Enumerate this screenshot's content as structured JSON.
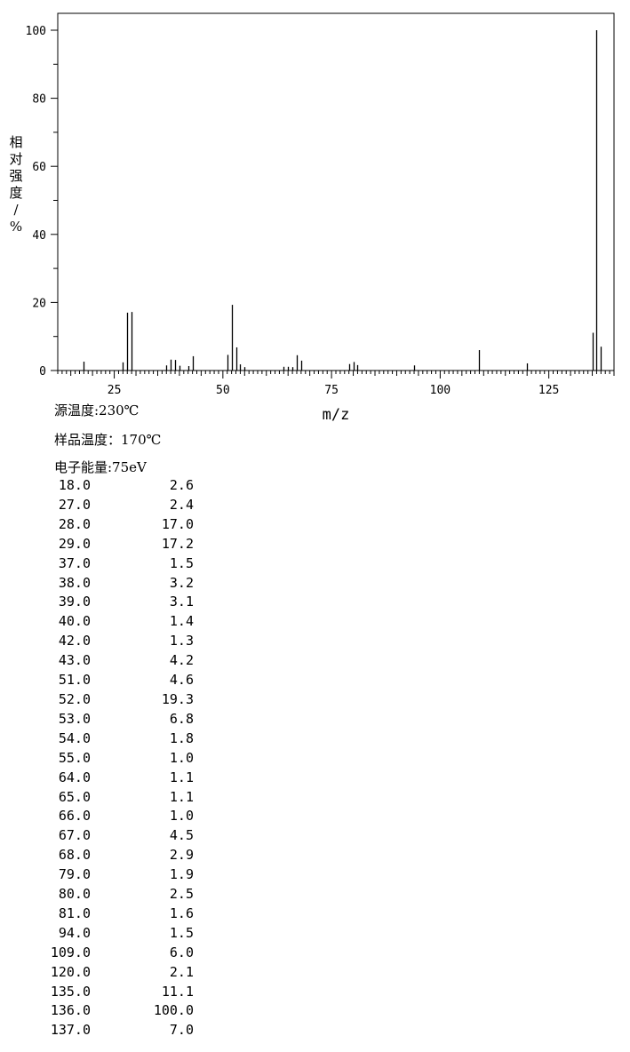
{
  "chart_data": {
    "type": "bar",
    "xlabel": "m/z",
    "ylabel": "相对强度/%",
    "xlim": [
      12,
      140
    ],
    "ylim": [
      0,
      100
    ],
    "x_ticks": [
      25,
      50,
      75,
      100,
      125
    ],
    "y_ticks": [
      0,
      20,
      40,
      60,
      80,
      100
    ],
    "grid": false,
    "peaks": [
      {
        "mz": 18.0,
        "intensity": 2.6
      },
      {
        "mz": 27.0,
        "intensity": 2.4
      },
      {
        "mz": 28.0,
        "intensity": 17.0
      },
      {
        "mz": 29.0,
        "intensity": 17.2
      },
      {
        "mz": 37.0,
        "intensity": 1.5
      },
      {
        "mz": 38.0,
        "intensity": 3.2
      },
      {
        "mz": 39.0,
        "intensity": 3.1
      },
      {
        "mz": 40.0,
        "intensity": 1.4
      },
      {
        "mz": 42.0,
        "intensity": 1.3
      },
      {
        "mz": 43.0,
        "intensity": 4.2
      },
      {
        "mz": 51.0,
        "intensity": 4.6
      },
      {
        "mz": 52.0,
        "intensity": 19.3
      },
      {
        "mz": 53.0,
        "intensity": 6.8
      },
      {
        "mz": 54.0,
        "intensity": 1.8
      },
      {
        "mz": 55.0,
        "intensity": 1.0
      },
      {
        "mz": 64.0,
        "intensity": 1.1
      },
      {
        "mz": 65.0,
        "intensity": 1.1
      },
      {
        "mz": 66.0,
        "intensity": 1.0
      },
      {
        "mz": 67.0,
        "intensity": 4.5
      },
      {
        "mz": 68.0,
        "intensity": 2.9
      },
      {
        "mz": 79.0,
        "intensity": 1.9
      },
      {
        "mz": 80.0,
        "intensity": 2.5
      },
      {
        "mz": 81.0,
        "intensity": 1.6
      },
      {
        "mz": 94.0,
        "intensity": 1.5
      },
      {
        "mz": 109.0,
        "intensity": 6.0
      },
      {
        "mz": 120.0,
        "intensity": 2.1
      },
      {
        "mz": 135.0,
        "intensity": 11.1
      },
      {
        "mz": 136.0,
        "intensity": 100.0
      },
      {
        "mz": 137.0,
        "intensity": 7.0
      }
    ]
  },
  "conditions": {
    "source_temp": "源温度:230℃",
    "sample_temp": "样品温度：170℃",
    "electron_energy": "电子能量:75eV"
  },
  "peak_table": [
    {
      "mz": "18.0",
      "ab": "2.6"
    },
    {
      "mz": "27.0",
      "ab": "2.4"
    },
    {
      "mz": "28.0",
      "ab": "17.0"
    },
    {
      "mz": "29.0",
      "ab": "17.2"
    },
    {
      "mz": "37.0",
      "ab": "1.5"
    },
    {
      "mz": "38.0",
      "ab": "3.2"
    },
    {
      "mz": "39.0",
      "ab": "3.1"
    },
    {
      "mz": "40.0",
      "ab": "1.4"
    },
    {
      "mz": "42.0",
      "ab": "1.3"
    },
    {
      "mz": "43.0",
      "ab": "4.2"
    },
    {
      "mz": "51.0",
      "ab": "4.6"
    },
    {
      "mz": "52.0",
      "ab": "19.3"
    },
    {
      "mz": "53.0",
      "ab": "6.8"
    },
    {
      "mz": "54.0",
      "ab": "1.8"
    },
    {
      "mz": "55.0",
      "ab": "1.0"
    },
    {
      "mz": "64.0",
      "ab": "1.1"
    },
    {
      "mz": "65.0",
      "ab": "1.1"
    },
    {
      "mz": "66.0",
      "ab": "1.0"
    },
    {
      "mz": "67.0",
      "ab": "4.5"
    },
    {
      "mz": "68.0",
      "ab": "2.9"
    },
    {
      "mz": "79.0",
      "ab": "1.9"
    },
    {
      "mz": "80.0",
      "ab": "2.5"
    },
    {
      "mz": "81.0",
      "ab": "1.6"
    },
    {
      "mz": "94.0",
      "ab": "1.5"
    },
    {
      "mz": "109.0",
      "ab": "6.0"
    },
    {
      "mz": "120.0",
      "ab": "2.1"
    },
    {
      "mz": "135.0",
      "ab": "11.1"
    },
    {
      "mz": "136.0",
      "ab": "100.0"
    },
    {
      "mz": "137.0",
      "ab": "7.0"
    }
  ]
}
